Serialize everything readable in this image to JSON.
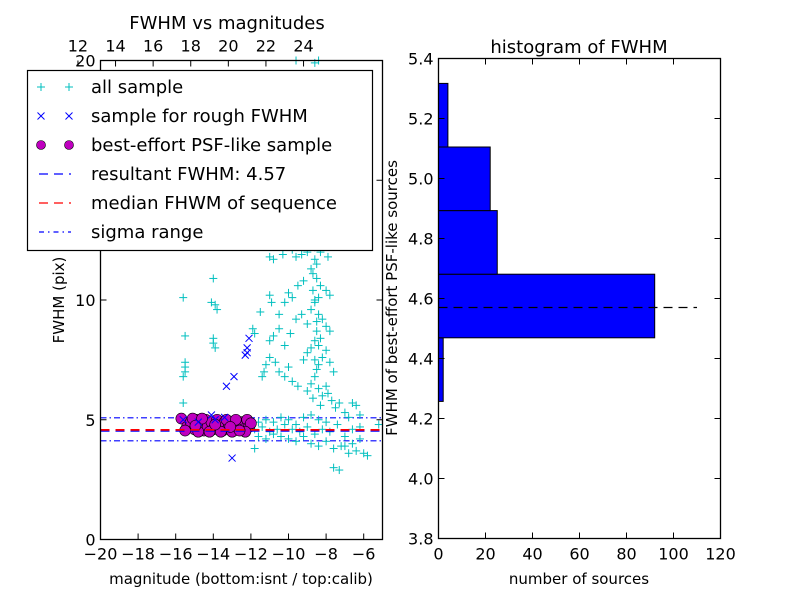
{
  "chart_data": [
    {
      "type": "scatter",
      "title": "FWHM vs magnitudes",
      "xlabel": "magnitude (bottom:isnt / top:calib)",
      "ylabel": "FWHM (pix)",
      "xlim": [
        -20,
        -5
      ],
      "ylim": [
        0,
        20
      ],
      "xticks": [
        "−20",
        "−18",
        "−16",
        "−14",
        "−12",
        "−10",
        "−8",
        "−6"
      ],
      "xtick_values": [
        -20,
        -18,
        -16,
        -14,
        -12,
        -10,
        -8,
        -6
      ],
      "yticks": [
        "0",
        "5",
        "10",
        "15",
        "20"
      ],
      "ytick_values": [
        0,
        5,
        10,
        15,
        20
      ],
      "top_axis": {
        "ticks": [
          "12",
          "14",
          "16",
          "18",
          "20",
          "22",
          "24"
        ],
        "tick_values": [
          12,
          14,
          16,
          18,
          20,
          22,
          24
        ],
        "offset_from_bottom": 33.2
      },
      "legend": {
        "placement": "upper-left",
        "entries": [
          {
            "label": "all sample",
            "marker": "plus",
            "color": "#00BFBF"
          },
          {
            "label": "sample for rough FWHM",
            "marker": "x",
            "color": "#0000FF"
          },
          {
            "label": "best-effort PSF-like sample",
            "marker": "circle",
            "color": "#BF00BF"
          },
          {
            "label": "resultant FWHM: 4.57",
            "marker": "dashed",
            "color": "#0000FF"
          },
          {
            "label": "median FHWM of sequence",
            "marker": "dashed",
            "color": "#FF0000"
          },
          {
            "label": "sigma range",
            "marker": "dashdot",
            "color": "#0000FF"
          }
        ]
      },
      "lines": {
        "resultant_fwhm": 4.57,
        "median_fwhm": 4.57,
        "sigma_low": 4.12,
        "sigma_high": 5.08
      },
      "series": [
        {
          "name": "all sample",
          "marker": "plus",
          "color": "#00BFBF",
          "points": [
            [
              -15.6,
              10.1
            ],
            [
              -15.5,
              8.5
            ],
            [
              -15.5,
              7.4
            ],
            [
              -15.5,
              7.2
            ],
            [
              -15.5,
              7.0
            ],
            [
              -15.6,
              6.8
            ],
            [
              -15.6,
              5.7
            ],
            [
              -14.0,
              10.9
            ],
            [
              -14.1,
              9.9
            ],
            [
              -13.9,
              9.8
            ],
            [
              -13.8,
              9.6
            ],
            [
              -14.0,
              8.4
            ],
            [
              -14.0,
              8.2
            ],
            [
              -13.9,
              8.0
            ],
            [
              -11.9,
              8.8
            ],
            [
              -11.8,
              8.6
            ],
            [
              -11.5,
              9.5
            ],
            [
              -11.3,
              7.0
            ],
            [
              -11.4,
              6.8
            ],
            [
              -11.8,
              3.8
            ],
            [
              -11.0,
              11.8
            ],
            [
              -10.8,
              11.7
            ],
            [
              -10.3,
              11.9
            ],
            [
              -9.8,
              12.1
            ],
            [
              -9.6,
              11.8
            ],
            [
              -9.3,
              11.9
            ],
            [
              -9.0,
              12.0
            ],
            [
              -8.6,
              12.2
            ],
            [
              -8.3,
              12.0
            ],
            [
              -7.9,
              11.8
            ],
            [
              -11.0,
              10.2
            ],
            [
              -10.9,
              9.9
            ],
            [
              -10.5,
              9.4
            ],
            [
              -10.2,
              9.9
            ],
            [
              -10.0,
              10.3
            ],
            [
              -9.8,
              10.1
            ],
            [
              -9.5,
              10.6
            ],
            [
              -9.2,
              10.8
            ],
            [
              -8.8,
              11.3
            ],
            [
              -8.7,
              11.1
            ],
            [
              -8.5,
              10.9
            ],
            [
              -8.3,
              10.6
            ],
            [
              -8.0,
              10.4
            ],
            [
              -7.8,
              10.2
            ],
            [
              -11.0,
              8.3
            ],
            [
              -10.8,
              8.5
            ],
            [
              -10.5,
              8.8
            ],
            [
              -10.2,
              8.1
            ],
            [
              -9.9,
              8.6
            ],
            [
              -9.6,
              9.2
            ],
            [
              -9.3,
              9.4
            ],
            [
              -9.0,
              9.0
            ],
            [
              -8.8,
              9.6
            ],
            [
              -8.6,
              9.9
            ],
            [
              -8.4,
              9.4
            ],
            [
              -8.2,
              9.2
            ],
            [
              -8.0,
              8.9
            ],
            [
              -7.8,
              8.7
            ],
            [
              -11.2,
              7.3
            ],
            [
              -11.0,
              7.6
            ],
            [
              -10.7,
              7.4
            ],
            [
              -10.5,
              7.0
            ],
            [
              -10.2,
              6.8
            ],
            [
              -10.0,
              7.2
            ],
            [
              -9.8,
              6.6
            ],
            [
              -9.5,
              6.4
            ],
            [
              -9.2,
              7.5
            ],
            [
              -9.0,
              7.8
            ],
            [
              -8.8,
              8.0
            ],
            [
              -8.6,
              8.3
            ],
            [
              -8.4,
              8.1
            ],
            [
              -8.2,
              7.6
            ],
            [
              -8.0,
              7.9
            ],
            [
              -7.8,
              7.4
            ],
            [
              -7.6,
              7.0
            ],
            [
              -9.0,
              6.2
            ],
            [
              -8.8,
              6.5
            ],
            [
              -8.6,
              6.8
            ],
            [
              -8.5,
              7.1
            ],
            [
              -8.4,
              6.3
            ],
            [
              -8.2,
              6.0
            ],
            [
              -8.0,
              6.4
            ],
            [
              -7.9,
              6.1
            ],
            [
              -7.7,
              5.8
            ],
            [
              -7.5,
              5.5
            ],
            [
              -7.3,
              5.7
            ],
            [
              -7.0,
              5.3
            ],
            [
              -6.8,
              5.1
            ],
            [
              -6.6,
              5.7
            ],
            [
              -6.4,
              5.6
            ],
            [
              -6.2,
              5.2
            ],
            [
              -8.7,
              5.9
            ],
            [
              -8.3,
              5.6
            ],
            [
              -8.6,
              7.5
            ],
            [
              -8.5,
              8.7
            ],
            [
              -8.5,
              9.1
            ],
            [
              -8.6,
              10.0
            ],
            [
              -8.7,
              10.4
            ],
            [
              -8.4,
              10.1
            ],
            [
              -8.5,
              11.5
            ],
            [
              -8.6,
              11.7
            ],
            [
              -8.3,
              8.4
            ],
            [
              -8.4,
              7.3
            ],
            [
              -11.8,
              4.6
            ],
            [
              -11.4,
              4.7
            ],
            [
              -11.0,
              4.5
            ],
            [
              -10.6,
              4.6
            ],
            [
              -10.2,
              4.8
            ],
            [
              -9.8,
              4.6
            ],
            [
              -9.4,
              4.5
            ],
            [
              -9.0,
              4.7
            ],
            [
              -8.6,
              4.4
            ],
            [
              -8.2,
              4.6
            ],
            [
              -7.8,
              4.5
            ],
            [
              -7.4,
              4.8
            ],
            [
              -7.0,
              4.3
            ],
            [
              -6.6,
              4.6
            ],
            [
              -6.2,
              4.7
            ],
            [
              -11.6,
              4.9
            ],
            [
              -11.2,
              5.0
            ],
            [
              -10.8,
              4.9
            ],
            [
              -10.4,
              5.1
            ],
            [
              -10.0,
              5.0
            ],
            [
              -9.6,
              4.8
            ],
            [
              -9.2,
              5.1
            ],
            [
              -8.8,
              5.2
            ],
            [
              -8.4,
              5.0
            ],
            [
              -8.0,
              4.9
            ],
            [
              -11.6,
              4.3
            ],
            [
              -11.2,
              4.2
            ],
            [
              -10.8,
              4.4
            ],
            [
              -10.4,
              4.3
            ],
            [
              -10.0,
              4.2
            ],
            [
              -9.6,
              4.1
            ],
            [
              -9.2,
              4.3
            ],
            [
              -8.8,
              4.0
            ],
            [
              -8.4,
              3.9
            ],
            [
              -8.0,
              4.1
            ],
            [
              -7.6,
              3.8
            ],
            [
              -7.2,
              3.9
            ],
            [
              -6.8,
              3.6
            ],
            [
              -6.4,
              3.7
            ],
            [
              -6.0,
              3.6
            ],
            [
              -5.8,
              3.5
            ],
            [
              -7.0,
              3.9
            ],
            [
              -6.6,
              4.0
            ],
            [
              -6.2,
              4.2
            ],
            [
              -7.6,
              3.0
            ],
            [
              -7.3,
              2.9
            ],
            [
              -5.2,
              4.8
            ],
            [
              -9.6,
              20.0
            ],
            [
              -8.6,
              19.9
            ],
            [
              -8.4,
              20.0
            ],
            [
              -9.9,
              12.6
            ],
            [
              -8.7,
              12.5
            ]
          ]
        },
        {
          "name": "sample for rough FWHM",
          "marker": "x",
          "color": "#0000FF",
          "points": [
            [
              -12.1,
              8.4
            ],
            [
              -12.2,
              8.0
            ],
            [
              -12.2,
              7.8
            ],
            [
              -12.3,
              7.7
            ],
            [
              -12.9,
              6.8
            ],
            [
              -13.3,
              6.4
            ],
            [
              -13.0,
              3.4
            ],
            [
              -14.1,
              5.2
            ],
            [
              -13.4,
              5.1
            ],
            [
              -15.6,
              5.0
            ],
            [
              -14.8,
              4.9
            ],
            [
              -13.9,
              5.0
            ]
          ]
        },
        {
          "name": "best-effort PSF-like sample",
          "marker": "circle",
          "color": "#BF00BF",
          "points": [
            [
              -15.7,
              5.05
            ],
            [
              -15.4,
              4.7
            ],
            [
              -15.2,
              4.9
            ],
            [
              -15.0,
              4.6
            ],
            [
              -14.9,
              5.0
            ],
            [
              -14.7,
              4.8
            ],
            [
              -14.5,
              4.55
            ],
            [
              -14.4,
              5.0
            ],
            [
              -14.3,
              4.7
            ],
            [
              -14.1,
              4.9
            ],
            [
              -14.0,
              4.6
            ],
            [
              -13.8,
              5.0
            ],
            [
              -13.7,
              4.75
            ],
            [
              -13.5,
              4.55
            ],
            [
              -13.4,
              4.9
            ],
            [
              -13.2,
              4.65
            ],
            [
              -13.0,
              4.85
            ],
            [
              -12.9,
              4.55
            ],
            [
              -12.7,
              4.75
            ],
            [
              -12.5,
              4.9
            ],
            [
              -12.4,
              4.6
            ],
            [
              -12.2,
              5.0
            ],
            [
              -12.1,
              4.7
            ],
            [
              -12.0,
              4.85
            ],
            [
              -15.5,
              4.55
            ],
            [
              -14.8,
              4.5
            ],
            [
              -14.2,
              4.5
            ],
            [
              -13.6,
              4.5
            ],
            [
              -13.0,
              4.5
            ],
            [
              -12.3,
              4.5
            ],
            [
              -15.1,
              5.05
            ],
            [
              -14.6,
              5.05
            ],
            [
              -13.9,
              4.8
            ],
            [
              -13.3,
              5.0
            ],
            [
              -12.8,
              5.0
            ],
            [
              -12.6,
              4.55
            ],
            [
              -14.95,
              4.75
            ],
            [
              -13.1,
              4.7
            ]
          ]
        }
      ]
    },
    {
      "type": "bar",
      "orientation": "horizontal",
      "title": "histogram of FWHM",
      "xlabel": "number of sources",
      "ylabel": "FWHM of best-effort PSF-like sources",
      "xlim": [
        0,
        120
      ],
      "ylim": [
        3.8,
        5.4
      ],
      "xticks": [
        "0",
        "20",
        "40",
        "60",
        "80",
        "100",
        "120"
      ],
      "xtick_values": [
        0,
        20,
        40,
        60,
        80,
        100,
        120
      ],
      "yticks": [
        "3.8",
        "4.0",
        "4.2",
        "4.4",
        "4.6",
        "4.8",
        "5.0",
        "5.2",
        "5.4"
      ],
      "ytick_values": [
        3.8,
        4.0,
        4.2,
        4.4,
        4.6,
        4.8,
        5.0,
        5.2,
        5.4
      ],
      "bin_edges": [
        4.257,
        4.469,
        4.681,
        4.893,
        5.105,
        5.317
      ],
      "counts": [
        2,
        92,
        25,
        22,
        4
      ],
      "bar_color": "#0000FF",
      "reference_line": {
        "value": 4.57,
        "x_extent": [
          0,
          110
        ],
        "style": "dashed",
        "color": "#000000"
      }
    }
  ]
}
